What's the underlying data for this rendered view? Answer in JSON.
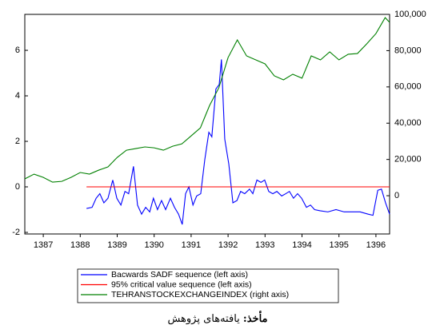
{
  "chart_data": {
    "type": "line",
    "xlim": [
      1387,
      1396.87
    ],
    "xticks": [
      {
        "value": 1387.5,
        "label": "1387"
      },
      {
        "value": 1388.5,
        "label": "1388"
      },
      {
        "value": 1389.5,
        "label": "1389"
      },
      {
        "value": 1390.5,
        "label": "1390"
      },
      {
        "value": 1391.5,
        "label": "1391"
      },
      {
        "value": 1392.5,
        "label": "1392"
      },
      {
        "value": 1393.5,
        "label": "1393"
      },
      {
        "value": 1394.5,
        "label": "1394"
      },
      {
        "value": 1395.5,
        "label": "1395"
      },
      {
        "value": 1396.5,
        "label": "1396"
      }
    ],
    "ylim": [
      -2.07,
      7.58
    ],
    "yticks": [
      -2,
      0,
      2,
      4,
      6
    ],
    "y2lim": [
      -21100,
      100000
    ],
    "y2ticks": [
      0,
      {
        "value": 20000,
        "label": "20,000"
      },
      {
        "value": 40000,
        "label": "40,000"
      },
      {
        "value": 60000,
        "label": "60,000"
      },
      {
        "value": 80000,
        "label": "80,000"
      },
      {
        "value": 100000,
        "label": "100,000"
      }
    ],
    "series": [
      {
        "name": "Bacwards SADF sequence (left axis)",
        "color": "#0000ff",
        "x": [
          1388.67,
          1388.82,
          1388.93,
          1389.03,
          1389.14,
          1389.25,
          1389.38,
          1389.49,
          1389.6,
          1389.71,
          1389.81,
          1389.94,
          1390.05,
          1390.16,
          1390.27,
          1390.38,
          1390.48,
          1390.59,
          1390.7,
          1390.81,
          1390.94,
          1391.05,
          1391.16,
          1391.26,
          1391.35,
          1391.44,
          1391.55,
          1391.65,
          1391.76,
          1391.87,
          1391.98,
          1392.06,
          1392.17,
          1392.26,
          1392.32,
          1392.41,
          1392.52,
          1392.63,
          1392.74,
          1392.84,
          1392.95,
          1393.08,
          1393.17,
          1393.28,
          1393.39,
          1393.49,
          1393.6,
          1393.71,
          1393.82,
          1393.95,
          1394.06,
          1394.16,
          1394.27,
          1394.38,
          1394.49,
          1394.62,
          1394.73,
          1394.84,
          1394.99,
          1395.2,
          1395.42,
          1395.64,
          1395.85,
          1396.07,
          1396.29,
          1396.42,
          1396.55,
          1396.65,
          1396.76,
          1396.87
        ],
        "values": [
          -0.95,
          -0.9,
          -0.5,
          -0.3,
          -0.7,
          -0.5,
          0.3,
          -0.5,
          -0.8,
          -0.2,
          -0.3,
          0.9,
          -0.8,
          -1.2,
          -0.9,
          -1.1,
          -0.5,
          -1.0,
          -0.6,
          -1.0,
          -0.5,
          -0.9,
          -1.2,
          -1.65,
          -0.3,
          0.0,
          -0.8,
          -0.4,
          -0.3,
          1.2,
          2.4,
          2.2,
          4.3,
          4.5,
          5.6,
          2.1,
          1.0,
          -0.7,
          -0.6,
          -0.2,
          -0.3,
          -0.1,
          -0.3,
          0.3,
          0.2,
          0.3,
          -0.2,
          -0.3,
          -0.2,
          -0.4,
          -0.3,
          -0.2,
          -0.5,
          -0.3,
          -0.5,
          -0.9,
          -0.8,
          -1.0,
          -1.05,
          -1.1,
          -1.0,
          -1.1,
          -1.1,
          -1.1,
          -1.2,
          -1.25,
          -0.15,
          -0.1,
          -0.7,
          -1.2
        ]
      },
      {
        "name": "95% critical value sequence (left axis)",
        "color": "#ff0000",
        "x": [
          1388.67,
          1396.87
        ],
        "values": [
          0.0,
          0.0
        ]
      },
      {
        "name": "TEHRANSTOCKEXCHANGEINDEX (right axis)",
        "color": "#008000",
        "axis": "y2",
        "x": [
          1387,
          1387.25,
          1387.5,
          1387.75,
          1388,
          1388.25,
          1388.5,
          1388.75,
          1389,
          1389.25,
          1389.5,
          1389.75,
          1390,
          1390.25,
          1390.5,
          1390.75,
          1391,
          1391.25,
          1391.5,
          1391.75,
          1392,
          1392.25,
          1392.5,
          1392.75,
          1393,
          1393.25,
          1393.5,
          1393.75,
          1394,
          1394.25,
          1394.5,
          1394.75,
          1395,
          1395.25,
          1395.5,
          1395.75,
          1396,
          1396.25,
          1396.5,
          1396.75,
          1396.87
        ],
        "values": [
          9300,
          11900,
          10100,
          7500,
          7900,
          10100,
          12800,
          11900,
          14100,
          15900,
          21100,
          25100,
          26000,
          26900,
          26400,
          25100,
          27300,
          28600,
          33000,
          37400,
          49800,
          59500,
          76200,
          85900,
          77100,
          74900,
          72700,
          66100,
          63900,
          67000,
          64800,
          77100,
          74900,
          79300,
          74900,
          78000,
          78400,
          83700,
          89400,
          98200,
          95600
        ]
      }
    ],
    "source_label": "مأخذ:",
    "source_text": "یافته‌های پژوهش"
  }
}
